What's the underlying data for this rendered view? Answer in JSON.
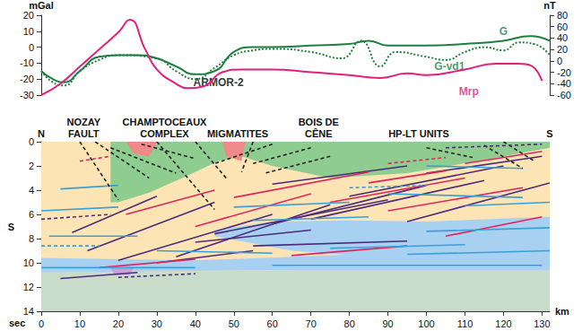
{
  "chart_data": [
    {
      "type": "line",
      "ylabel": "mGal",
      "y2label": "nT",
      "xlim": [
        0,
        132
      ],
      "ylim": [
        -30,
        20
      ],
      "yticks": [
        -30,
        -20,
        -10,
        0,
        10,
        20
      ],
      "y2lim": [
        -60,
        80
      ],
      "y2ticks": [
        -60,
        -40,
        -20,
        0,
        20,
        40,
        60,
        80
      ],
      "tick_labels": "y",
      "series": [
        {
          "name": "G",
          "color": "#1f7f3f",
          "line_style": "solid",
          "axis": "y",
          "x": [
            0,
            3,
            6,
            10,
            15,
            20,
            25,
            30,
            35,
            40,
            45,
            50,
            55,
            60,
            70,
            80,
            85,
            90,
            100,
            110,
            120,
            127,
            132
          ],
          "values": [
            -15,
            -20,
            -22,
            -15,
            -6,
            -5,
            -5,
            -7,
            -12,
            -17,
            -15,
            -3,
            0,
            0,
            1,
            2,
            4,
            1,
            1,
            2,
            4,
            7,
            4
          ]
        },
        {
          "name": "G-vd1",
          "color": "#1f7f3f",
          "line_style": "dotted",
          "axis": "y",
          "x": [
            0,
            3,
            6,
            10,
            15,
            20,
            30,
            35,
            40,
            45,
            50,
            55,
            60,
            70,
            78,
            83,
            88,
            92,
            100,
            105,
            110,
            115,
            120,
            124,
            128,
            132
          ],
          "values": [
            -15,
            -22,
            -24,
            -15,
            -8,
            -5,
            -7,
            -15,
            -20,
            -13,
            -5,
            -2,
            -1,
            -3,
            -7,
            4,
            -12,
            -3,
            -6,
            -8,
            -3,
            0,
            -2,
            3,
            2,
            -5
          ]
        },
        {
          "name": "Mrp",
          "color": "#e0207a",
          "line_style": "solid",
          "axis": "y2",
          "x": [
            0,
            5,
            10,
            15,
            20,
            23,
            27,
            30,
            35,
            38,
            42,
            47,
            52,
            60,
            70,
            80,
            88,
            95,
            100,
            110,
            118,
            124,
            127,
            130
          ],
          "values": [
            -60,
            -40,
            -10,
            20,
            50,
            72,
            20,
            -15,
            -40,
            -48,
            -45,
            -20,
            -15,
            -15,
            -20,
            -25,
            -30,
            -22,
            -25,
            -15,
            -5,
            -5,
            -8,
            -35
          ]
        }
      ],
      "annotations": [
        {
          "text": "ARMOR-2",
          "x": 46,
          "y": -22,
          "color": "#000000"
        },
        {
          "text": "G",
          "x": 120,
          "y": 10,
          "color": "#1f7f3f"
        },
        {
          "text": "G-vd1",
          "x": 106,
          "y": -12,
          "color": "#1f7f3f"
        },
        {
          "text": "Mrp",
          "x": 111,
          "y": -28,
          "color": "#e0207a"
        }
      ]
    },
    {
      "type": "section",
      "xlabel": "km",
      "ylabel": "S",
      "y_unit": "sec",
      "xlim": [
        0,
        132
      ],
      "xticks": [
        0,
        10,
        20,
        30,
        40,
        50,
        60,
        70,
        80,
        90,
        100,
        110,
        120,
        130
      ],
      "ylim": [
        14,
        0
      ],
      "yticks": [
        0,
        2,
        4,
        6,
        8,
        10,
        12,
        14
      ],
      "labels": [
        {
          "text": "N",
          "x": 0
        },
        {
          "text": "NOZAY\nFAULT",
          "x": 11
        },
        {
          "text": "CHAMPTOCEAUX\nCOMPLEX",
          "x": 32
        },
        {
          "text": "MIGMATITES",
          "x": 51
        },
        {
          "text": "BOIS DE\nCÊNE",
          "x": 72
        },
        {
          "text": "HP-LT UNITS",
          "x": 98
        },
        {
          "text": "S",
          "x": 132
        }
      ],
      "regions": [
        {
          "color": "#c9dbc9",
          "points": [
            [
              0,
              0
            ],
            [
              132,
              0
            ],
            [
              132,
              14
            ],
            [
              0,
              14
            ]
          ]
        },
        {
          "color": "#fde4b4",
          "points": [
            [
              0,
              0
            ],
            [
              132,
              0
            ],
            [
              132,
              10.4
            ],
            [
              0,
              10.8
            ]
          ]
        },
        {
          "color": "#a8d0f0",
          "points": [
            [
              0,
              9.6
            ],
            [
              40,
              9.8
            ],
            [
              90,
              9.2
            ],
            [
              132,
              9.0
            ],
            [
              132,
              10.6
            ],
            [
              60,
              10.6
            ],
            [
              0,
              10.8
            ]
          ]
        },
        {
          "color": "#a8d0f0",
          "points": [
            [
              45,
              7.3
            ],
            [
              60,
              6.6
            ],
            [
              80,
              6.5
            ],
            [
              100,
              6.6
            ],
            [
              132,
              6.2
            ],
            [
              132,
              9.2
            ],
            [
              110,
              9.5
            ],
            [
              90,
              9.6
            ],
            [
              65,
              9.0
            ],
            [
              45,
              7.8
            ]
          ]
        },
        {
          "color": "#8fcc8f",
          "points": [
            [
              18,
              0
            ],
            [
              132,
              0
            ],
            [
              132,
              0.5
            ],
            [
              115,
              1.5
            ],
            [
              95,
              2.6
            ],
            [
              75,
              3.0
            ],
            [
              60,
              2.0
            ],
            [
              52,
              1.2
            ],
            [
              46,
              1.6
            ],
            [
              38,
              2.8
            ],
            [
              28,
              4.2
            ],
            [
              20,
              5.0
            ],
            [
              18,
              5.0
            ]
          ]
        },
        {
          "color": "#f08a8a",
          "points": [
            [
              22,
              0
            ],
            [
              30,
              0
            ],
            [
              28,
              1.2
            ],
            [
              24,
              1.0
            ]
          ]
        },
        {
          "color": "#f08a8a",
          "points": [
            [
              47,
              0
            ],
            [
              53,
              0
            ],
            [
              52,
              1.6
            ],
            [
              48,
              1.2
            ]
          ]
        },
        {
          "color": "#c6a2dc",
          "points": [
            [
              18,
              10.4
            ],
            [
              24,
              10.4
            ],
            [
              23,
              11
            ],
            [
              19,
              11
            ]
          ]
        }
      ],
      "segments": [
        {
          "color": "#4a2c7a",
          "line_style": "solid",
          "values": [
            [
              8,
              7.5,
              30,
              4.5
            ],
            [
              12,
              9,
              45,
              5
            ],
            [
              20,
              9.8,
              60,
              6
            ],
            [
              35,
              9.5,
              75,
              5.2
            ],
            [
              45,
              7.6,
              90,
              4.8
            ],
            [
              60,
              6.8,
              100,
              3.6
            ],
            [
              70,
              6.4,
              115,
              3.2
            ],
            [
              95,
              6.6,
              132,
              3.4
            ],
            [
              40,
              8.3,
              70,
              7.3
            ],
            [
              55,
              8.6,
              95,
              8.2
            ],
            [
              30,
              10.0,
              55,
              9.0
            ],
            [
              80,
              4.5,
              120,
              2.0
            ],
            [
              60,
              3.5,
              95,
              2.0
            ],
            [
              100,
              2.6,
              130,
              1.2
            ],
            [
              5,
              11.3,
              25,
              10.8
            ]
          ]
        },
        {
          "color": "#e0245e",
          "line_style": "solid",
          "values": [
            [
              22,
              6,
              45,
              4
            ],
            [
              40,
              7,
              70,
              4.3
            ],
            [
              50,
              4.6,
              85,
              2.5
            ],
            [
              75,
              5,
              110,
              3
            ],
            [
              90,
              5.7,
              125,
              3.8
            ],
            [
              105,
              7.8,
              130,
              6.2
            ],
            [
              65,
              9.4,
              95,
              8.6
            ],
            [
              15,
              10.4,
              40,
              9.7
            ],
            [
              110,
              1.8,
              130,
              0.8
            ],
            [
              85,
              3.4,
              105,
              2.4
            ]
          ]
        },
        {
          "color": "#3aa0d8",
          "line_style": "solid",
          "values": [
            [
              0,
              5.7,
              20,
              5.4
            ],
            [
              2,
              7.8,
              25,
              7.8
            ],
            [
              0,
              10.4,
              40,
              10.4
            ],
            [
              30,
              9.0,
              60,
              9.2
            ],
            [
              60,
              10.2,
              130,
              10.2
            ],
            [
              95,
              9.3,
              132,
              9.0
            ],
            [
              100,
              7.4,
              132,
              7.1
            ],
            [
              75,
              8.8,
              110,
              8.5
            ],
            [
              50,
              5.4,
              80,
              5.0
            ],
            [
              90,
              4.3,
              125,
              4.6
            ],
            [
              55,
              6.5,
              85,
              6.2
            ],
            [
              110,
              5.3,
              132,
              5.0
            ],
            [
              5,
              3.9,
              20,
              3.6
            ],
            [
              100,
              2.0,
              125,
              2.2
            ]
          ]
        },
        {
          "color": "#222222",
          "line_style": "dashed",
          "values": [
            [
              10,
              0,
              20,
              4.8
            ],
            [
              14,
              0,
              28,
              3.0
            ],
            [
              18,
              0.5,
              35,
              2.6
            ],
            [
              26,
              0.2,
              40,
              1.4
            ],
            [
              30,
              0,
              45,
              5.6
            ],
            [
              40,
              0,
              48,
              3.0
            ],
            [
              55,
              0,
              52,
              2.5
            ],
            [
              60,
              0.2,
              45,
              1.8
            ],
            [
              70,
              0.5,
              55,
              1.8
            ],
            [
              75,
              1.2,
              58,
              2.6
            ],
            [
              115,
              0.3,
              125,
              2.2
            ],
            [
              120,
              0,
              128,
              1.6
            ],
            [
              100,
              0.5,
              112,
              1.3
            ]
          ]
        },
        {
          "color": "#4a2c7a",
          "line_style": "dashed",
          "values": [
            [
              20,
              11.2,
              40,
              10.9
            ],
            [
              0,
              6.4,
              18,
              6.0
            ],
            [
              105,
              0.5,
              130,
              0.2
            ]
          ]
        },
        {
          "color": "#e0245e",
          "line_style": "dashed",
          "values": [
            [
              10,
              1.6,
              18,
              1.2
            ],
            [
              90,
              1.8,
              105,
              1.3
            ]
          ]
        },
        {
          "color": "#3aa0d8",
          "line_style": "dashed",
          "values": [
            [
              80,
              3.8,
              100,
              3.6
            ],
            [
              0,
              8.6,
              15,
              8.6
            ]
          ]
        }
      ]
    }
  ]
}
